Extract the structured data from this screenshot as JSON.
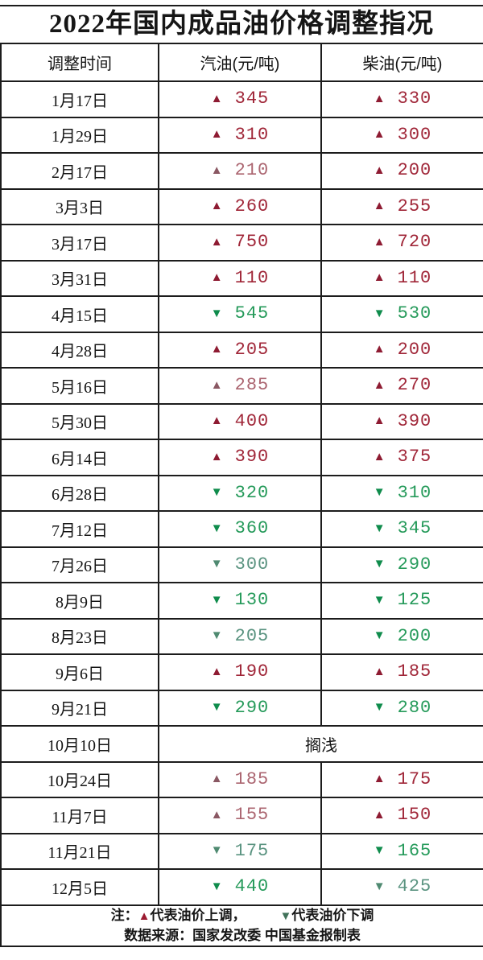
{
  "title": "2022年国内成品油价格调整指况",
  "symbols": {
    "up": "▲",
    "down": "▼"
  },
  "colors": {
    "border": "#1c1c1c",
    "text": "#141414",
    "up_arrow": "#8e1b32",
    "up_value": "#a02638",
    "up_muted": "#8a5863",
    "down_arrow": "#0f8c4c",
    "down_value": "#259a5a",
    "down_muted": "#4f8a71",
    "legend_up": "#9c1b32",
    "legend_down": "#41725a"
  },
  "table": {
    "headers": [
      "调整时间",
      "汽油(元/吨)",
      "柴油(元/吨)"
    ],
    "stranded_label": "搁浅",
    "rows": [
      {
        "date": "1月17日",
        "gasoline": {
          "dir": "up",
          "value": "345",
          "muted": false
        },
        "diesel": {
          "dir": "up",
          "value": "330",
          "muted": false
        }
      },
      {
        "date": "1月29日",
        "gasoline": {
          "dir": "up",
          "value": "310",
          "muted": false
        },
        "diesel": {
          "dir": "up",
          "value": "300",
          "muted": false
        }
      },
      {
        "date": "2月17日",
        "gasoline": {
          "dir": "up",
          "value": "210",
          "muted": true
        },
        "diesel": {
          "dir": "up",
          "value": "200",
          "muted": false
        }
      },
      {
        "date": "3月3日",
        "gasoline": {
          "dir": "up",
          "value": "260",
          "muted": false
        },
        "diesel": {
          "dir": "up",
          "value": "255",
          "muted": false
        }
      },
      {
        "date": "3月17日",
        "gasoline": {
          "dir": "up",
          "value": "750",
          "muted": false
        },
        "diesel": {
          "dir": "up",
          "value": "720",
          "muted": false
        }
      },
      {
        "date": "3月31日",
        "gasoline": {
          "dir": "up",
          "value": "110",
          "muted": false
        },
        "diesel": {
          "dir": "up",
          "value": "110",
          "muted": false
        }
      },
      {
        "date": "4月15日",
        "gasoline": {
          "dir": "down",
          "value": "545",
          "muted": false
        },
        "diesel": {
          "dir": "down",
          "value": "530",
          "muted": false
        }
      },
      {
        "date": "4月28日",
        "gasoline": {
          "dir": "up",
          "value": "205",
          "muted": false
        },
        "diesel": {
          "dir": "up",
          "value": "200",
          "muted": false
        }
      },
      {
        "date": "5月16日",
        "gasoline": {
          "dir": "up",
          "value": "285",
          "muted": true
        },
        "diesel": {
          "dir": "up",
          "value": "270",
          "muted": false
        }
      },
      {
        "date": "5月30日",
        "gasoline": {
          "dir": "up",
          "value": "400",
          "muted": false
        },
        "diesel": {
          "dir": "up",
          "value": "390",
          "muted": false
        }
      },
      {
        "date": "6月14日",
        "gasoline": {
          "dir": "up",
          "value": "390",
          "muted": false
        },
        "diesel": {
          "dir": "up",
          "value": "375",
          "muted": false
        }
      },
      {
        "date": "6月28日",
        "gasoline": {
          "dir": "down",
          "value": "320",
          "muted": false
        },
        "diesel": {
          "dir": "down",
          "value": "310",
          "muted": false
        }
      },
      {
        "date": "7月12日",
        "gasoline": {
          "dir": "down",
          "value": "360",
          "muted": false
        },
        "diesel": {
          "dir": "down",
          "value": "345",
          "muted": false
        }
      },
      {
        "date": "7月26日",
        "gasoline": {
          "dir": "down",
          "value": "300",
          "muted": true
        },
        "diesel": {
          "dir": "down",
          "value": "290",
          "muted": false
        }
      },
      {
        "date": "8月9日",
        "gasoline": {
          "dir": "down",
          "value": "130",
          "muted": false
        },
        "diesel": {
          "dir": "down",
          "value": "125",
          "muted": false
        }
      },
      {
        "date": "8月23日",
        "gasoline": {
          "dir": "down",
          "value": "205",
          "muted": true
        },
        "diesel": {
          "dir": "down",
          "value": "200",
          "muted": false
        }
      },
      {
        "date": "9月6日",
        "gasoline": {
          "dir": "up",
          "value": "190",
          "muted": false
        },
        "diesel": {
          "dir": "up",
          "value": "185",
          "muted": false
        }
      },
      {
        "date": "9月21日",
        "gasoline": {
          "dir": "down",
          "value": "290",
          "muted": false
        },
        "diesel": {
          "dir": "down",
          "value": "280",
          "muted": false
        }
      },
      {
        "date": "10月10日",
        "merged": "搁浅"
      },
      {
        "date": "10月24日",
        "gasoline": {
          "dir": "up",
          "value": "185",
          "muted": true
        },
        "diesel": {
          "dir": "up",
          "value": "175",
          "muted": false
        }
      },
      {
        "date": "11月7日",
        "gasoline": {
          "dir": "up",
          "value": "155",
          "muted": true
        },
        "diesel": {
          "dir": "up",
          "value": "150",
          "muted": false
        }
      },
      {
        "date": "11月21日",
        "gasoline": {
          "dir": "down",
          "value": "175",
          "muted": true
        },
        "diesel": {
          "dir": "down",
          "value": "165",
          "muted": false
        }
      },
      {
        "date": "12月5日",
        "gasoline": {
          "dir": "down",
          "value": "440",
          "muted": false
        },
        "diesel": {
          "dir": "down",
          "value": "425",
          "muted": true
        }
      }
    ]
  },
  "notes": {
    "legend_prefix": "注：",
    "legend_up_label": "代表油价上调，",
    "legend_down_label": "代表油价下调",
    "source": "数据来源：国家发改委 中国基金报制表"
  },
  "chart_data": {
    "type": "table",
    "title": "2022年国内成品油价格调整指况",
    "columns": [
      "调整时间",
      "汽油(元/吨)",
      "柴油(元/吨)"
    ],
    "rows": [
      [
        "1月17日",
        "+345",
        "+330"
      ],
      [
        "1月29日",
        "+310",
        "+300"
      ],
      [
        "2月17日",
        "+210",
        "+200"
      ],
      [
        "3月3日",
        "+260",
        "+255"
      ],
      [
        "3月17日",
        "+750",
        "+720"
      ],
      [
        "3月31日",
        "+110",
        "+110"
      ],
      [
        "4月15日",
        "-545",
        "-530"
      ],
      [
        "4月28日",
        "+205",
        "+200"
      ],
      [
        "5月16日",
        "+285",
        "+270"
      ],
      [
        "5月30日",
        "+400",
        "+390"
      ],
      [
        "6月14日",
        "+390",
        "+375"
      ],
      [
        "6月28日",
        "-320",
        "-310"
      ],
      [
        "7月12日",
        "-360",
        "-345"
      ],
      [
        "7月26日",
        "-300",
        "-290"
      ],
      [
        "8月9日",
        "-130",
        "-125"
      ],
      [
        "8月23日",
        "-205",
        "-200"
      ],
      [
        "9月6日",
        "+190",
        "+185"
      ],
      [
        "9月21日",
        "-290",
        "-280"
      ],
      [
        "10月10日",
        "搁浅",
        "搁浅"
      ],
      [
        "10月24日",
        "+185",
        "+175"
      ],
      [
        "11月7日",
        "+155",
        "+150"
      ],
      [
        "11月21日",
        "-175",
        "-165"
      ],
      [
        "12月5日",
        "-440",
        "-425"
      ]
    ],
    "legend": "▲代表油价上调，▼代表油价下调",
    "source": "数据来源：国家发改委 中国基金报制表"
  }
}
